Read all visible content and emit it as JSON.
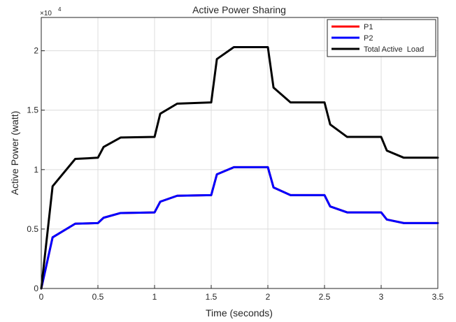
{
  "chart_data": {
    "type": "line",
    "title": "Active Power Sharing",
    "xlabel": "Time (seconds)",
    "ylabel": "Active Power (watt)",
    "y_exponent_label": "×10",
    "y_exponent_power": "4",
    "xlim": [
      0,
      3.5
    ],
    "ylim": [
      0,
      22800
    ],
    "grid": true,
    "legend_position": "top-right",
    "x_ticks": [
      0,
      0.5,
      1,
      1.5,
      2,
      2.5,
      3,
      3.5
    ],
    "x_tick_labels": [
      "0",
      "0.5",
      "1",
      "1.5",
      "2",
      "2.5",
      "3",
      "3.5"
    ],
    "y_ticks": [
      0,
      5000,
      10000,
      15000,
      20000
    ],
    "y_tick_labels": [
      "0",
      "0.5",
      "1",
      "1.5",
      "2"
    ],
    "series": [
      {
        "name": "P1",
        "color": "#ff0000",
        "x": [
          0,
          0.1,
          0.3,
          0.5,
          0.55,
          0.7,
          1.0,
          1.05,
          1.2,
          1.5,
          1.55,
          1.7,
          2.0,
          2.05,
          2.2,
          2.5,
          2.55,
          2.7,
          3.0,
          3.05,
          3.2,
          3.5
        ],
        "y": [
          0,
          4300,
          5450,
          5500,
          5950,
          6350,
          6400,
          7300,
          7800,
          7850,
          9600,
          10200,
          10200,
          8500,
          7850,
          7850,
          6900,
          6400,
          6400,
          5800,
          5500,
          5500
        ]
      },
      {
        "name": "P2",
        "color": "#0000ff",
        "x": [
          0,
          0.1,
          0.3,
          0.5,
          0.55,
          0.7,
          1.0,
          1.05,
          1.2,
          1.5,
          1.55,
          1.7,
          2.0,
          2.05,
          2.2,
          2.5,
          2.55,
          2.7,
          3.0,
          3.05,
          3.2,
          3.5
        ],
        "y": [
          0,
          4300,
          5450,
          5500,
          5950,
          6350,
          6400,
          7300,
          7800,
          7850,
          9600,
          10200,
          10200,
          8500,
          7850,
          7850,
          6900,
          6400,
          6400,
          5800,
          5500,
          5500
        ]
      },
      {
        "name": "Total Active  Load",
        "color": "#000000",
        "x": [
          0,
          0.1,
          0.3,
          0.5,
          0.55,
          0.7,
          1.0,
          1.05,
          1.2,
          1.5,
          1.55,
          1.7,
          2.0,
          2.05,
          2.2,
          2.5,
          2.55,
          2.7,
          3.0,
          3.05,
          3.2,
          3.5
        ],
        "y": [
          0,
          8600,
          10900,
          11000,
          11900,
          12700,
          12750,
          14700,
          15550,
          15650,
          19300,
          20300,
          20300,
          16900,
          15650,
          15650,
          13800,
          12750,
          12750,
          11600,
          11000,
          11000
        ]
      }
    ]
  }
}
